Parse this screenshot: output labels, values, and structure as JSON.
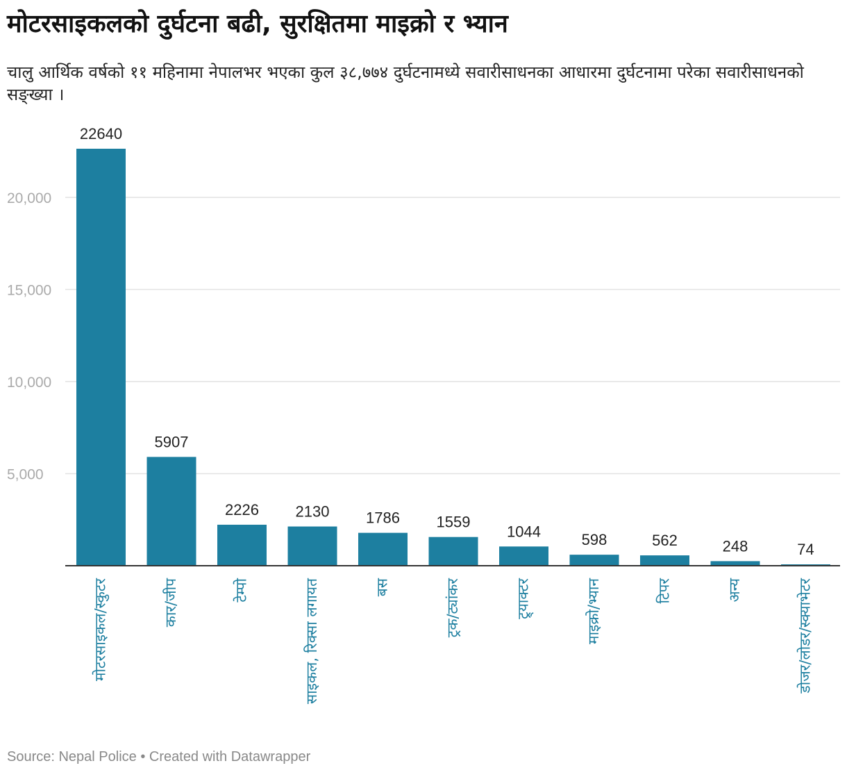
{
  "title": "मोटरसाइकलको दुर्घटना बढी, सुरक्षितमा माइक्रो र भ्यान",
  "subtitle": "चालु आर्थिक वर्षको ११ महिनामा नेपालभर भएका कुल ३८,७७४ दुर्घटनामध्ये सवारीसाधनका आधारमा दुर्घटनामा परेका सवारीसाधनको सङ्ख्या ।",
  "footer": {
    "source": "Source: Nepal Police",
    "separator": " • ",
    "credit": "Created with Datawrapper"
  },
  "colors": {
    "bar": "#1d7fa0",
    "label": "#1d7fa0",
    "grid": "#e2e2e2",
    "axis": "#333333",
    "tick": "#aaaaaa",
    "value": "#222222"
  },
  "chart_data": {
    "type": "bar",
    "title": "मोटरसाइकलको दुर्घटना बढी, सुरक्षितमा माइक्रो र भ्यान",
    "xlabel": "",
    "ylabel": "",
    "ylim": [
      0,
      22640
    ],
    "yticks": [
      5000,
      10000,
      15000,
      20000
    ],
    "ytick_labels": [
      "5,000",
      "10,000",
      "15,000",
      "20,000"
    ],
    "grid": true,
    "categories": [
      "मोटरसाइकल/स्कुटर",
      "कार/जीप",
      "टेम्पो",
      "साइकल, रिक्सा लगायत",
      "बस",
      "ट्रक/ट्यांकर",
      "ट्र्याक्टर",
      "माइक्रो/भ्यान",
      "टिपर",
      "अन्य",
      "डोजर/लोडर/स्क्याभेटर"
    ],
    "values": [
      22640,
      5907,
      2226,
      2130,
      1786,
      1559,
      1044,
      598,
      562,
      248,
      74
    ]
  }
}
